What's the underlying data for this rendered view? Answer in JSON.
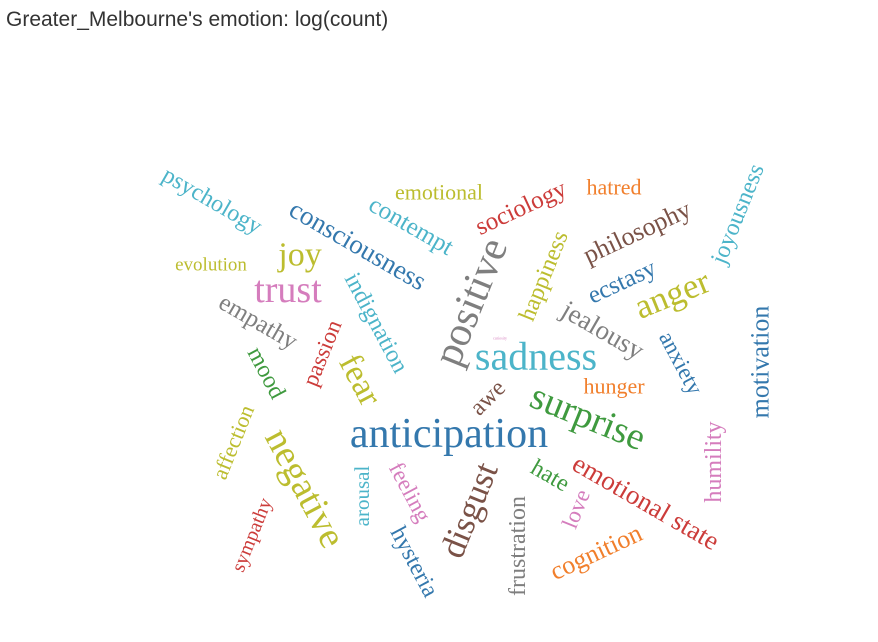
{
  "chart_data": {
    "type": "wordcloud",
    "title": "Greater_Melbourne's emotion: log(count)",
    "words": [
      {
        "text": "anticipation",
        "color": "#3478ad",
        "weight": 42
      },
      {
        "text": "positive",
        "color": "#7f7f7f",
        "weight": 42
      },
      {
        "text": "sadness",
        "color": "#4cb4c9",
        "weight": 40
      },
      {
        "text": "surprise",
        "color": "#3f9a3f",
        "weight": 38
      },
      {
        "text": "trust",
        "color": "#d57dbd",
        "weight": 38
      },
      {
        "text": "negative",
        "color": "#bcbd2f",
        "weight": 38
      },
      {
        "text": "disgust",
        "color": "#7a5247",
        "weight": 35
      },
      {
        "text": "anger",
        "color": "#bcbd2f",
        "weight": 35
      },
      {
        "text": "fear",
        "color": "#bcbd2f",
        "weight": 34
      },
      {
        "text": "joy",
        "color": "#bcbd2f",
        "weight": 34
      },
      {
        "text": "emotional state",
        "color": "#cc3c3a",
        "weight": 27
      },
      {
        "text": "jealousy",
        "color": "#7f7f7f",
        "weight": 27
      },
      {
        "text": "consciousness",
        "color": "#3478ad",
        "weight": 27
      },
      {
        "text": "philosophy",
        "color": "#7a5247",
        "weight": 26
      },
      {
        "text": "cognition",
        "color": "#f17f2c",
        "weight": 26
      },
      {
        "text": "motivation",
        "color": "#3478ad",
        "weight": 26
      },
      {
        "text": "empathy",
        "color": "#7f7f7f",
        "weight": 25
      },
      {
        "text": "sociology",
        "color": "#cc3c3a",
        "weight": 25
      },
      {
        "text": "contempt",
        "color": "#4cb4c9",
        "weight": 25
      },
      {
        "text": "ecstasy",
        "color": "#3478ad",
        "weight": 25
      },
      {
        "text": "joyousness",
        "color": "#4cb4c9",
        "weight": 24
      },
      {
        "text": "indignation",
        "color": "#4cb4c9",
        "weight": 24
      },
      {
        "text": "mood",
        "color": "#3f9a3f",
        "weight": 24
      },
      {
        "text": "happiness",
        "color": "#bcbd2f",
        "weight": 24
      },
      {
        "text": "psychology",
        "color": "#4cb4c9",
        "weight": 24
      },
      {
        "text": "awe",
        "color": "#7a5247",
        "weight": 24
      },
      {
        "text": "hysteria",
        "color": "#3478ad",
        "weight": 24
      },
      {
        "text": "humility",
        "color": "#d57dbd",
        "weight": 24
      },
      {
        "text": "frustration",
        "color": "#7f7f7f",
        "weight": 24
      },
      {
        "text": "hate",
        "color": "#3f9a3f",
        "weight": 24
      },
      {
        "text": "anxiety",
        "color": "#3478ad",
        "weight": 23
      },
      {
        "text": "passion",
        "color": "#cc3c3a",
        "weight": 23
      },
      {
        "text": "feeling",
        "color": "#d57dbd",
        "weight": 23
      },
      {
        "text": "love",
        "color": "#d57dbd",
        "weight": 23
      },
      {
        "text": "affection",
        "color": "#bcbd2f",
        "weight": 22
      },
      {
        "text": "emotional",
        "color": "#bcbd2f",
        "weight": 22
      },
      {
        "text": "hatred",
        "color": "#f17f2c",
        "weight": 22
      },
      {
        "text": "hunger",
        "color": "#f17f2c",
        "weight": 22
      },
      {
        "text": "arousal",
        "color": "#4cb4c9",
        "weight": 21
      },
      {
        "text": "sympathy",
        "color": "#cc3c3a",
        "weight": 20
      },
      {
        "text": "evolution",
        "color": "#bcbd2f",
        "weight": 19
      },
      {
        "text": "curiosity",
        "color": "#d57dbd",
        "weight": 4
      }
    ]
  }
}
